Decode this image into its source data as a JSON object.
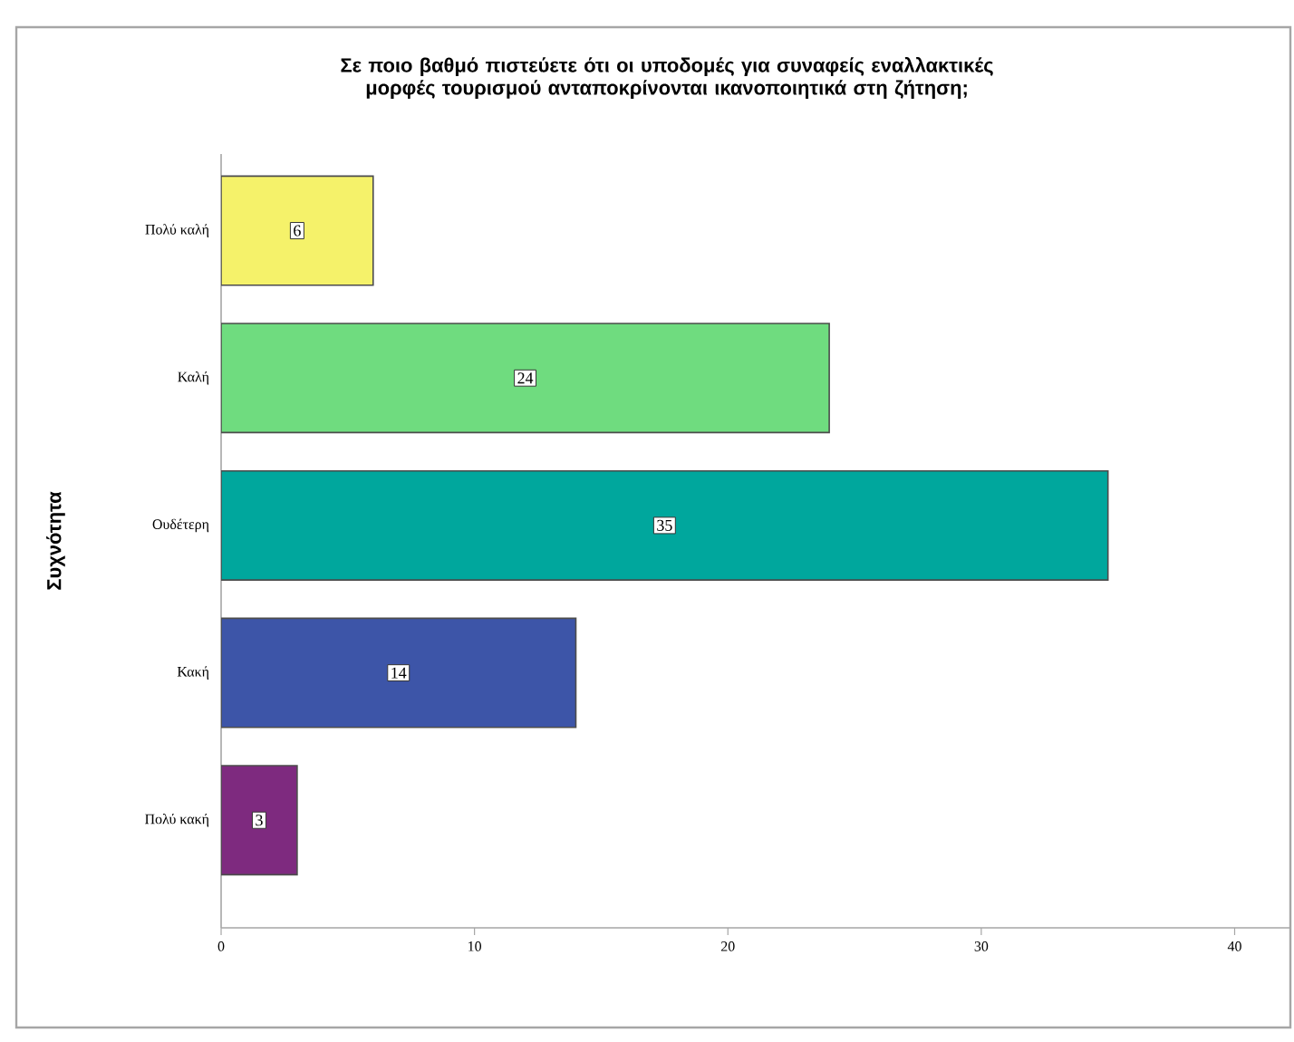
{
  "chart_data": {
    "type": "bar",
    "orientation": "horizontal",
    "title": "Σε ποιο βαθμό πιστεύετε ότι οι υποδομές για συναφείς εναλλακτικές μορφές τουρισμού ανταποκρίνονται ικανοποιητικά στη ζήτηση;",
    "ylabel": "Συχνότητα",
    "categories": [
      "Πολύ καλή",
      "Καλή",
      "Ουδέτερη",
      "Κακή",
      "Πολύ κακή"
    ],
    "values": [
      6,
      24,
      35,
      14,
      3
    ],
    "colors": [
      "#f5f26a",
      "#6fdc7f",
      "#00a79d",
      "#3d55a8",
      "#7e2a7f"
    ],
    "xlim": [
      0,
      42.2
    ],
    "xticks": [
      0,
      10,
      20,
      30,
      40
    ],
    "data_labels": true
  }
}
